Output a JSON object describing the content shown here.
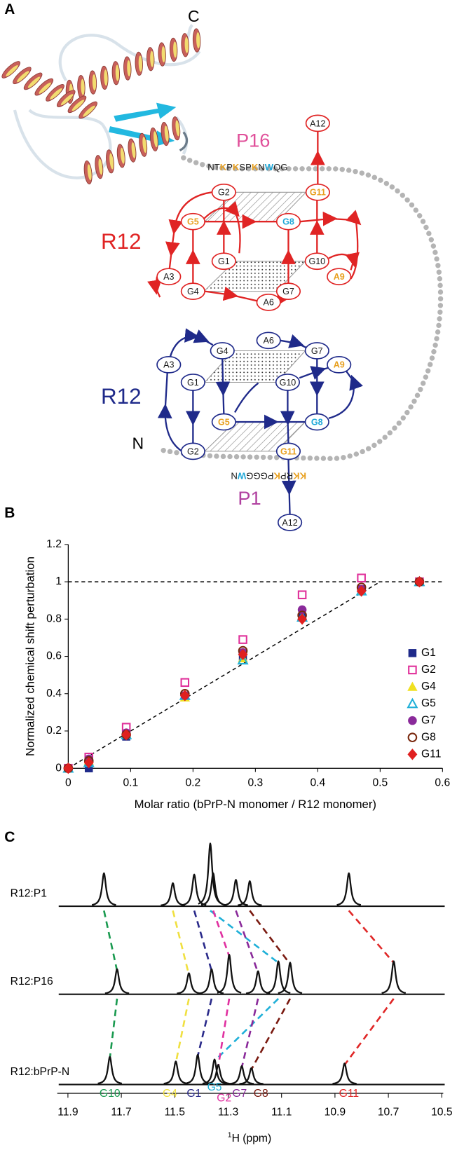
{
  "panel_a": {
    "panel_label": "A",
    "c_terminus": "C",
    "n_terminus": "N",
    "peptides": [
      {
        "name": "P16",
        "name_color": "#e0509a",
        "sequence": [
          {
            "text": "NT",
            "color": "#1a1a1a"
          },
          {
            "text": "K",
            "color": "#e8a020"
          },
          {
            "text": "P",
            "color": "#1a1a1a"
          },
          {
            "text": "K",
            "color": "#e8a020"
          },
          {
            "text": "SP",
            "color": "#1a1a1a"
          },
          {
            "text": "K",
            "color": "#e8a020"
          },
          {
            "text": "N",
            "color": "#1a1a1a"
          },
          {
            "text": "W",
            "color": "#20a8d8"
          },
          {
            "text": "QG",
            "color": "#1a1a1a"
          }
        ]
      },
      {
        "name": "P1",
        "name_color": "#b040a0",
        "sequence": [
          {
            "text": "KK",
            "color": "#e8a020"
          },
          {
            "text": "RP",
            "color": "#1a1a1a"
          },
          {
            "text": "K",
            "color": "#e8a020"
          },
          {
            "text": "PGGG",
            "color": "#1a1a1a"
          },
          {
            "text": "W",
            "color": "#20a8d8"
          },
          {
            "text": "N",
            "color": "#1a1a1a"
          }
        ]
      }
    ],
    "quadruplexes": [
      {
        "label": "R12",
        "color": "#e02424",
        "nodes": [
          {
            "label": "A12",
            "color": "#1a1a1a"
          },
          {
            "label": "G11",
            "color": "#e8a020"
          },
          {
            "label": "G2",
            "color": "#1a1a1a"
          },
          {
            "label": "G5",
            "color": "#e8a020"
          },
          {
            "label": "G8",
            "color": "#20a8d8"
          },
          {
            "label": "G1",
            "color": "#1a1a1a"
          },
          {
            "label": "G10",
            "color": "#1a1a1a"
          },
          {
            "label": "A3",
            "color": "#1a1a1a"
          },
          {
            "label": "G4",
            "color": "#1a1a1a"
          },
          {
            "label": "A6",
            "color": "#1a1a1a"
          },
          {
            "label": "G7",
            "color": "#1a1a1a"
          },
          {
            "label": "A9",
            "color": "#e8a020"
          }
        ]
      },
      {
        "label": "R12",
        "color": "#1f2a8a",
        "nodes": [
          {
            "label": "A6",
            "color": "#1a1a1a"
          },
          {
            "label": "G4",
            "color": "#1a1a1a"
          },
          {
            "label": "G7",
            "color": "#1a1a1a"
          },
          {
            "label": "A3",
            "color": "#1a1a1a"
          },
          {
            "label": "A9",
            "color": "#e8a020"
          },
          {
            "label": "G1",
            "color": "#1a1a1a"
          },
          {
            "label": "G10",
            "color": "#1a1a1a"
          },
          {
            "label": "G5",
            "color": "#e8a020"
          },
          {
            "label": "G8",
            "color": "#20a8d8"
          },
          {
            "label": "G2",
            "color": "#1a1a1a"
          },
          {
            "label": "G11",
            "color": "#e8a020"
          },
          {
            "label": "A12",
            "color": "#1a1a1a"
          }
        ]
      }
    ]
  },
  "chart_data": [
    {
      "type": "scatter",
      "panel_label": "B",
      "xlabel": "Molar ratio (bPrP-N monomer / R12 monomer)",
      "ylabel": "Normalized chemical shift perturbation",
      "x": [
        0,
        0.033,
        0.093,
        0.187,
        0.28,
        0.375,
        0.47,
        0.563
      ],
      "series": [
        {
          "name": "G1",
          "color": "#1f2a8a",
          "marker": "square",
          "filled": true,
          "values": [
            0,
            0.0,
            0.17,
            0.39,
            0.59,
            0.81,
            0.96,
            1.0
          ]
        },
        {
          "name": "G2",
          "color": "#e0309a",
          "marker": "square",
          "filled": false,
          "values": [
            0,
            0.06,
            0.22,
            0.46,
            0.69,
            0.93,
            1.02,
            1.0
          ]
        },
        {
          "name": "G4",
          "color": "#f0e020",
          "marker": "triangle",
          "filled": true,
          "values": [
            0,
            0.04,
            0.18,
            0.38,
            0.59,
            0.81,
            0.95,
            1.0
          ]
        },
        {
          "name": "G5",
          "color": "#20b0d8",
          "marker": "triangle",
          "filled": false,
          "values": [
            0,
            0.03,
            0.18,
            0.39,
            0.58,
            0.81,
            0.95,
            1.0
          ]
        },
        {
          "name": "G7",
          "color": "#8a2a9a",
          "marker": "circle",
          "filled": true,
          "values": [
            0,
            0.05,
            0.19,
            0.39,
            0.62,
            0.85,
            0.96,
            1.0
          ]
        },
        {
          "name": "G8",
          "color": "#7a2a10",
          "marker": "circle",
          "filled": false,
          "values": [
            0,
            0.04,
            0.18,
            0.4,
            0.63,
            0.82,
            0.97,
            1.0
          ]
        },
        {
          "name": "G11",
          "color": "#e02020",
          "marker": "diamond",
          "filled": true,
          "values": [
            0,
            0.03,
            0.18,
            0.39,
            0.61,
            0.8,
            0.95,
            1.0
          ]
        }
      ],
      "reference_lines": [
        {
          "x": [
            0,
            0.6
          ],
          "y": [
            1,
            1
          ]
        },
        {
          "x": [
            0,
            0.5
          ],
          "y": [
            0,
            1
          ]
        }
      ],
      "xlim": [
        0,
        0.6
      ],
      "xticks": [
        0,
        0.1,
        0.2,
        0.3,
        0.4,
        0.5,
        0.6
      ],
      "ylim": [
        0,
        1.2
      ],
      "yticks": [
        0,
        0.2,
        0.4,
        0.6,
        0.8,
        1,
        1.2
      ],
      "legend": "right"
    },
    {
      "type": "spectrum",
      "panel_label": "C",
      "xlabel_sup": "1",
      "xlabel": "H (ppm)",
      "xlim": [
        11.94,
        10.5
      ],
      "xticks": [
        11.9,
        11.7,
        11.5,
        11.3,
        11.1,
        10.9,
        10.7,
        10.5
      ],
      "assignments": [
        {
          "name": "G10",
          "color": "#1a9a50"
        },
        {
          "name": "G4",
          "color": "#f0e040"
        },
        {
          "name": "G1",
          "color": "#2a2a8a"
        },
        {
          "name": "G5",
          "color": "#20b0d8"
        },
        {
          "name": "G2",
          "color": "#e030a0"
        },
        {
          "name": "G7",
          "color": "#8a2a9a"
        },
        {
          "name": "G8",
          "color": "#7a1a10"
        },
        {
          "name": "G11",
          "color": "#e02828"
        }
      ],
      "spectra": [
        {
          "name": "R12:P1",
          "x": [
            11.765,
            11.507,
            11.427,
            11.367,
            11.356,
            11.271,
            11.219,
            10.848
          ],
          "values": [
            0.5,
            0.35,
            0.48,
            0.95,
            0.5,
            0.4,
            0.38,
            0.5
          ]
        },
        {
          "name": "R12:P16",
          "x": [
            11.716,
            11.447,
            11.362,
            11.112,
            11.296,
            11.188,
            11.068,
            10.68
          ],
          "values": [
            0.38,
            0.32,
            0.38,
            0.5,
            0.6,
            0.35,
            0.48,
            0.5
          ]
        },
        {
          "name": "R12:bPrP-N",
          "x": [
            11.743,
            11.496,
            11.414,
            11.351,
            11.337,
            11.249,
            11.213,
            10.864
          ],
          "values": [
            0.42,
            0.35,
            0.45,
            0.38,
            0.3,
            0.28,
            0.25,
            0.32
          ]
        }
      ]
    }
  ]
}
